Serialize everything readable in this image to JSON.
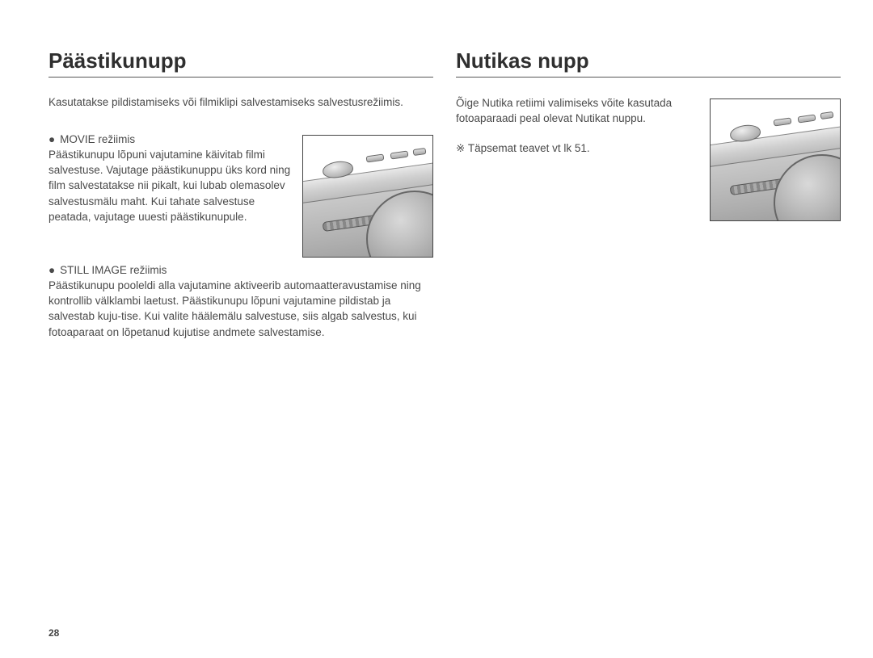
{
  "page_number": "28",
  "left": {
    "heading": "Päästikunupp",
    "intro": "Kasutatakse pildistamiseks või filmiklipi salvestamiseks salvestusrežiimis.",
    "movie": {
      "bullet": "●",
      "title": "MOVIE režiimis",
      "body": "Päästikunupu lõpuni vajutamine käivitab filmi salvestuse. Vajutage päästikunuppu üks kord ning film salvestatakse nii pikalt, kui lubab olemasolev salvestusmälu maht. Kui tahate salvestuse peatada, vajutage uuesti päästikunupule."
    },
    "still": {
      "bullet": "●",
      "title": "STILL IMAGE režiimis",
      "body": "Päästikunupu pooleldi alla vajutamine aktiveerib automaatteravustamise ning kontrollib välklambi laetust. Päästikunupu lõpuni vajutamine pildistab ja salvestab kuju-tise. Kui valite häälemälu salvestuse, siis algab salvestus, kui fotoaparaat on lõpetanud kujutise andmete salvestamise."
    }
  },
  "right": {
    "heading": "Nutikas nupp",
    "intro": "Õige Nutika retiimi valimiseks võite kasutada fotoaparaadi peal olevat Nutikat nuppu.",
    "note_symbol": "※",
    "note": "Täpsemat teavet vt lk 51."
  }
}
